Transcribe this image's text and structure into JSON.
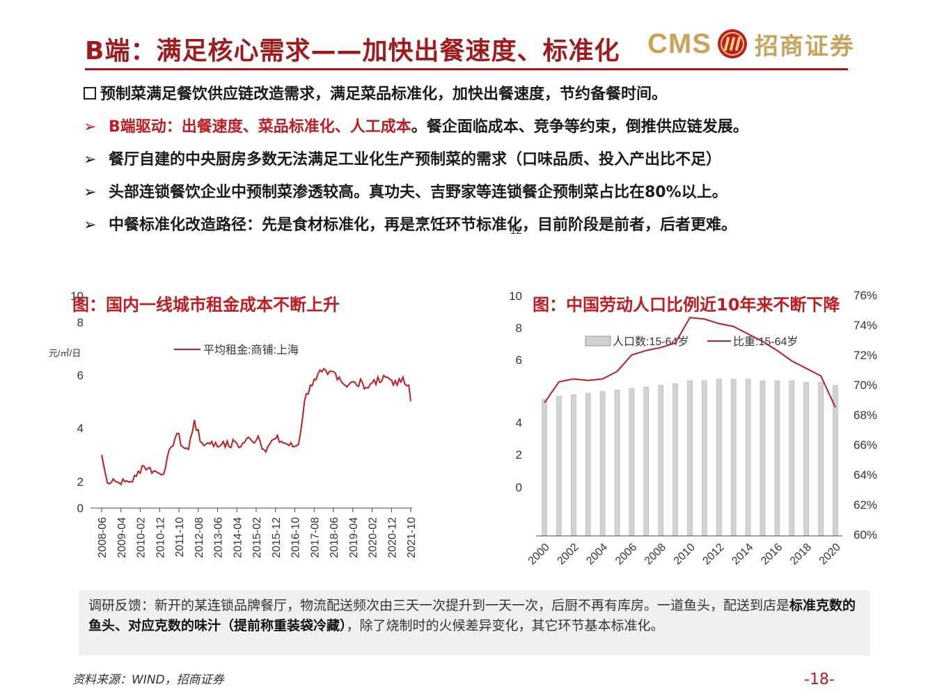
{
  "header": {
    "title": "B端：满足核心需求——加快出餐速度、标准化",
    "logo_cms": "CMS",
    "logo_cn": "招商证券"
  },
  "bullets": [
    {
      "mark": "square",
      "text": "预制菜满足餐饮供应链改造需求，满足菜品标准化，加快出餐速度，节约备餐时间。"
    },
    {
      "mark": "arrow",
      "highlight": "B端驱动：出餐速度、菜品标准化、人工成本",
      "text": "。餐企面临成本、竞争等约束，倒推供应链发展。"
    },
    {
      "mark": "arrow",
      "text": "餐厅自建的中央厨房多数无法满足工业化生产预制菜的需求（口味品质、投入产出比不足）"
    },
    {
      "mark": "arrow",
      "text": "头部连锁餐饮企业中预制菜渗透较高。真功夫、吉野家等连锁餐企预制菜占比在80%以上。"
    },
    {
      "mark": "arrow",
      "text": "中餐标准化改造路径：先是食材标准化，再是烹饪环节标准化，目前阶段是前者，后者更难。"
    }
  ],
  "arrow_glyph": "➢",
  "stray_label": "12",
  "chart_data": [
    {
      "type": "line",
      "title": "图：国内一线城市租金成本不断上升",
      "ylabel": "元/㎡/日",
      "series": [
        {
          "name": "平均租金:商铺:上海",
          "color": "#c01b21"
        }
      ],
      "x_ticks": [
        "2008-06",
        "2009-04",
        "2010-02",
        "2010-12",
        "2011-10",
        "2012-08",
        "2013-06",
        "2014-04",
        "2015-02",
        "2015-12",
        "2016-10",
        "2017-08",
        "2018-06",
        "2019-04",
        "2020-02",
        "2020-12",
        "2021-10"
      ],
      "y_ticks": [
        "0",
        "2",
        "4",
        "6",
        "8",
        "10"
      ],
      "ylim": [
        0,
        10
      ],
      "anchors": [
        [
          "2008-06",
          3.0
        ],
        [
          "2008-09",
          1.9
        ],
        [
          "2008-12",
          2.1
        ],
        [
          "2009-03",
          1.9
        ],
        [
          "2009-06",
          2.0
        ],
        [
          "2009-09",
          2.0
        ],
        [
          "2009-12",
          2.2
        ],
        [
          "2010-03",
          2.6
        ],
        [
          "2010-06",
          2.5
        ],
        [
          "2010-09",
          2.4
        ],
        [
          "2010-12",
          2.3
        ],
        [
          "2011-03",
          2.5
        ],
        [
          "2011-06",
          3.3
        ],
        [
          "2011-09",
          3.8
        ],
        [
          "2011-12",
          3.3
        ],
        [
          "2012-03",
          3.2
        ],
        [
          "2012-06",
          4.3
        ],
        [
          "2012-09",
          3.5
        ],
        [
          "2012-12",
          3.4
        ],
        [
          "2013-03",
          3.5
        ],
        [
          "2013-06",
          3.3
        ],
        [
          "2013-09",
          3.5
        ],
        [
          "2013-12",
          3.3
        ],
        [
          "2014-03",
          3.5
        ],
        [
          "2014-06",
          3.3
        ],
        [
          "2014-09",
          3.6
        ],
        [
          "2014-12",
          3.5
        ],
        [
          "2015-03",
          3.7
        ],
        [
          "2015-06",
          3.2
        ],
        [
          "2015-09",
          3.4
        ],
        [
          "2015-12",
          3.6
        ],
        [
          "2016-03",
          3.5
        ],
        [
          "2016-06",
          3.4
        ],
        [
          "2016-09",
          3.3
        ],
        [
          "2016-12",
          3.4
        ],
        [
          "2017-03",
          5.0
        ],
        [
          "2017-06",
          5.6
        ],
        [
          "2017-09",
          5.8
        ],
        [
          "2017-12",
          6.1
        ],
        [
          "2018-03",
          6.0
        ],
        [
          "2018-06",
          6.1
        ],
        [
          "2018-09",
          5.9
        ],
        [
          "2018-12",
          5.6
        ],
        [
          "2019-03",
          5.7
        ],
        [
          "2019-06",
          5.6
        ],
        [
          "2019-09",
          5.7
        ],
        [
          "2019-12",
          5.5
        ],
        [
          "2020-03",
          5.8
        ],
        [
          "2020-06",
          5.7
        ],
        [
          "2020-09",
          5.9
        ],
        [
          "2020-12",
          5.8
        ],
        [
          "2021-03",
          5.6
        ],
        [
          "2021-06",
          5.9
        ],
        [
          "2021-09",
          5.6
        ],
        [
          "2021-10",
          5.0
        ]
      ]
    },
    {
      "type": "bar+line",
      "title": "图：中国劳动人口比例近10年来不断下降",
      "series": [
        {
          "name": "人口数:15-64岁",
          "type": "bar",
          "axis": "left",
          "color": "#d0d0d0"
        },
        {
          "name": "比重:15-64岁",
          "type": "line",
          "axis": "right",
          "color": "#c01b21"
        }
      ],
      "x": [
        2000,
        2001,
        2002,
        2003,
        2004,
        2005,
        2006,
        2007,
        2008,
        2009,
        2010,
        2011,
        2012,
        2013,
        2014,
        2015,
        2016,
        2017,
        2018,
        2019,
        2020
      ],
      "x_ticks": [
        "2000",
        "2002",
        "2004",
        "2006",
        "2008",
        "2010",
        "2012",
        "2014",
        "2016",
        "2018",
        "2020"
      ],
      "left_ticks": [
        "0",
        "2",
        "4",
        "6",
        "8",
        "10",
        "12"
      ],
      "right_ticks": [
        "60%",
        "62%",
        "64%",
        "66%",
        "68%",
        "70%",
        "72%",
        "74%",
        "76%"
      ],
      "bar_values": [
        8.8,
        9.0,
        9.1,
        9.2,
        9.3,
        9.4,
        9.5,
        9.6,
        9.7,
        9.8,
        10.0,
        10.0,
        10.1,
        10.1,
        10.1,
        10.0,
        10.0,
        10.0,
        9.9,
        9.9,
        9.7
      ],
      "line_values": [
        68.8,
        70.2,
        70.4,
        70.3,
        70.4,
        70.9,
        72.0,
        72.3,
        72.5,
        72.8,
        74.5,
        74.4,
        74.1,
        73.9,
        73.4,
        72.9,
        72.3,
        71.6,
        71.1,
        70.6,
        68.5
      ]
    }
  ],
  "note": {
    "p1": "调研反馈：新开的某连锁品牌餐厅，物流配送频次由三天一次提升到一天一次，后厨不再有库房。一道鱼头，配送到店是",
    "bold": "标准克数的鱼头、对应克数的味汁（提前称重装袋冷藏）",
    "p2": "，除了烧制时的火候差异变化，其它环节基本标准化。"
  },
  "source": "资料来源：WIND，招商证券",
  "page_number": "-18-"
}
